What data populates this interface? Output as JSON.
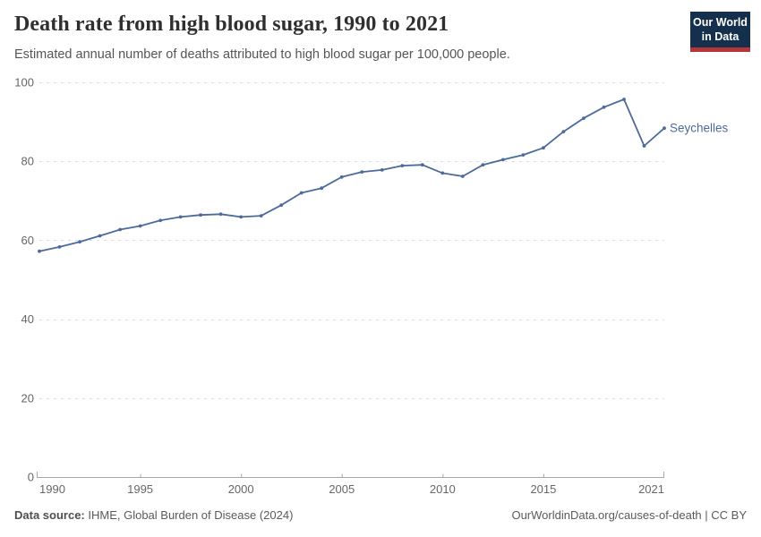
{
  "header": {
    "title": "Death rate from high blood sugar, 1990 to 2021",
    "subtitle": "Estimated annual number of deaths attributed to high blood sugar per 100,000 people.",
    "logo": {
      "line1": "Our World",
      "line2": "in Data",
      "bg_color": "#14304d",
      "accent_color": "#b5363a"
    }
  },
  "chart_data": {
    "type": "line",
    "title": "Death rate from high blood sugar, 1990 to 2021",
    "xlabel": "",
    "ylabel": "",
    "xlim": [
      1990,
      2021
    ],
    "ylim": [
      0,
      100
    ],
    "x_ticks": [
      1990,
      1995,
      2000,
      2005,
      2010,
      2015,
      2021
    ],
    "y_ticks": [
      0,
      20,
      40,
      60,
      80,
      100
    ],
    "grid": "horizontal-dashed",
    "legend_position": "end-of-line-label",
    "x": [
      1990,
      1991,
      1992,
      1993,
      1994,
      1995,
      1996,
      1997,
      1998,
      1999,
      2000,
      2001,
      2002,
      2003,
      2004,
      2005,
      2006,
      2007,
      2008,
      2009,
      2010,
      2011,
      2012,
      2013,
      2014,
      2015,
      2016,
      2017,
      2018,
      2019,
      2020,
      2021
    ],
    "series": [
      {
        "name": "Seychelles",
        "color": "#4c6a9c",
        "values": [
          57.2,
          58.3,
          59.6,
          61.1,
          62.7,
          63.6,
          65.0,
          65.9,
          66.4,
          66.6,
          65.9,
          66.2,
          68.9,
          72.0,
          73.2,
          76.0,
          77.3,
          77.8,
          78.9,
          79.1,
          77.0,
          76.2,
          79.1,
          80.4,
          81.6,
          83.4,
          87.5,
          90.9,
          93.7,
          95.7,
          83.9,
          88.4
        ]
      }
    ],
    "axis_color": "#a7a7a7",
    "grid_color": "#dcdcdc",
    "tick_label_color": "#666666"
  },
  "footer": {
    "source_label": "Data source:",
    "source_text": " IHME, Global Burden of Disease (2024)",
    "credit": "OurWorldinData.org/causes-of-death | CC BY"
  }
}
